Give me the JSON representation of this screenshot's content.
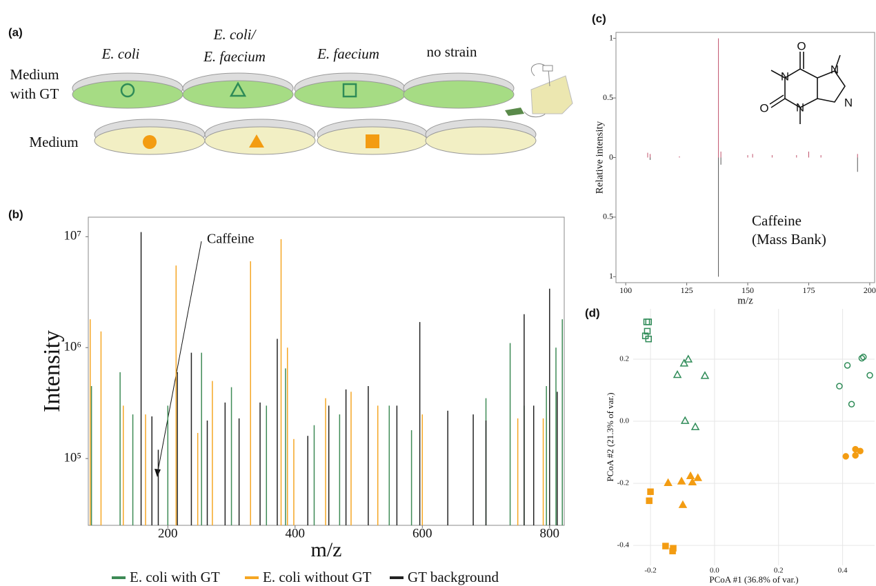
{
  "panel_labels": [
    "(a)",
    "(b)",
    "(c)",
    "(d)"
  ],
  "diagram": {
    "column_labels": [
      [
        "E. coli"
      ],
      [
        "E. coli/",
        "E. faecium"
      ],
      [
        "E. faecium"
      ],
      [
        "no strain"
      ]
    ],
    "row_labels": [
      [
        "Medium",
        "with GT"
      ],
      [
        "Medium"
      ]
    ]
  },
  "chart_data": [
    {
      "type": "bar",
      "log_y": true,
      "x_label": "m/z",
      "y_label": "Intensity",
      "annotations": [
        "Caffeine"
      ],
      "legend": "bottom",
      "xlim": [
        75,
        823
      ],
      "xticks": [
        200,
        400,
        600,
        800
      ],
      "ylim": [
        25000,
        15000000
      ],
      "yticks": [
        {
          "value": 100000,
          "label": "10⁵"
        },
        {
          "value": 1000000,
          "label": "10⁶"
        },
        {
          "value": 10000000,
          "label": "10⁷"
        }
      ],
      "series": [
        {
          "name": "E. coli with GT",
          "color": "#3d8a55",
          "x": [
            80,
            125,
            145,
            200,
            253,
            300,
            355,
            385,
            430,
            470,
            548,
            583,
            700,
            738,
            760,
            795,
            810,
            820
          ],
          "values": [
            450000,
            600000,
            250000,
            300000,
            900000,
            440000,
            300000,
            650000,
            200000,
            250000,
            300000,
            180000,
            350000,
            1100000,
            300000,
            450000,
            1000000,
            1800000
          ]
        },
        {
          "name": "E. coli without GT",
          "color": "#f5a623",
          "x": [
            78,
            95,
            130,
            165,
            213,
            247,
            270,
            330,
            378,
            388,
            398,
            448,
            488,
            530,
            600,
            750,
            790
          ],
          "values": [
            1800000,
            1400000,
            300000,
            250000,
            5500000,
            170000,
            500000,
            6000000,
            9500000,
            1000000,
            150000,
            350000,
            400000,
            300000,
            250000,
            230000,
            230000
          ]
        },
        {
          "name": "GT background",
          "color": "#222222",
          "x": [
            158,
            175,
            185,
            215,
            237,
            262,
            290,
            312,
            345,
            372,
            420,
            453,
            480,
            515,
            560,
            596,
            640,
            680,
            700,
            760,
            775,
            800,
            812
          ],
          "values": [
            11000000,
            240000,
            120000,
            600000,
            900000,
            220000,
            320000,
            230000,
            320000,
            1200000,
            160000,
            300000,
            420000,
            450000,
            300000,
            1700000,
            270000,
            250000,
            220000,
            2000000,
            300000,
            3400000,
            400000
          ]
        }
      ]
    },
    {
      "type": "bar",
      "x_label": "m/z",
      "y_label": "Relative intensity",
      "annotations": [
        "Caffeine",
        "(Mass Bank)"
      ],
      "xlim": [
        96,
        202
      ],
      "xticks": [
        100,
        125,
        150,
        175,
        200
      ],
      "ylim": [
        -1.05,
        1.05
      ],
      "yticks": [
        1,
        0.5,
        0,
        {
          "value": -0.5,
          "label": "0.5"
        },
        {
          "value": -1,
          "label": "1"
        }
      ],
      "series": [
        {
          "color": "#c0506a",
          "x": [
            109,
            110,
            122,
            138,
            139,
            150,
            152,
            160,
            170,
            175,
            180,
            195
          ],
          "values": [
            0.04,
            0.03,
            0.01,
            1.0,
            0.05,
            0.02,
            0.03,
            0.02,
            0.02,
            0.05,
            0.02,
            0.03
          ]
        },
        {
          "color": "#555555",
          "x": [
            110,
            138,
            139,
            195
          ],
          "values": [
            -0.02,
            -1.0,
            -0.06,
            -0.12
          ]
        }
      ]
    },
    {
      "type": "scatter",
      "x_label": "PCoA #1 (36.8% of var.)",
      "y_label": "PCoA #2 (21.3% of var.)",
      "grid": true,
      "xlim": [
        -0.254,
        0.5
      ],
      "xticks": [
        -0.2,
        {
          "value": 0,
          "label": "0.0"
        },
        0.2,
        0.4
      ],
      "ylim": [
        -0.464,
        0.362
      ],
      "yticks": [
        0.2,
        {
          "value": 0,
          "label": "0.0"
        },
        -0.2,
        -0.4
      ],
      "series": [
        {
          "color": "#2e8b57",
          "marker": "square",
          "filled": false,
          "x": [
            -0.212,
            -0.206,
            -0.216,
            -0.21,
            -0.206
          ],
          "values": [
            0.32,
            0.32,
            0.275,
            0.29,
            0.265
          ]
        },
        {
          "color": "#2e8b57",
          "marker": "triangle",
          "filled": false,
          "x": [
            -0.116,
            -0.095,
            -0.082,
            -0.03,
            -0.092,
            -0.06
          ],
          "values": [
            0.15,
            0.187,
            0.2,
            0.147,
            0.002,
            -0.018
          ]
        },
        {
          "color": "#2e8b57",
          "marker": "circle",
          "filled": false,
          "x": [
            0.39,
            0.415,
            0.428,
            0.46,
            0.465,
            0.485
          ],
          "values": [
            0.113,
            0.18,
            0.055,
            0.203,
            0.207,
            0.148
          ]
        },
        {
          "color": "#f39c12",
          "marker": "circle",
          "filled": true,
          "x": [
            0.41,
            0.44,
            0.455,
            0.44
          ],
          "values": [
            -0.113,
            -0.09,
            -0.096,
            -0.11
          ]
        },
        {
          "color": "#f39c12",
          "marker": "triangle",
          "filled": true,
          "x": [
            -0.145,
            -0.075,
            -0.069,
            -0.052,
            -0.103,
            -0.099
          ],
          "values": [
            -0.198,
            -0.176,
            -0.196,
            -0.182,
            -0.193,
            -0.269
          ]
        },
        {
          "color": "#f39c12",
          "marker": "square",
          "filled": true,
          "x": [
            -0.2,
            -0.204,
            -0.153,
            -0.131,
            -0.129
          ],
          "values": [
            -0.227,
            -0.256,
            -0.402,
            -0.418,
            -0.409
          ]
        }
      ]
    }
  ]
}
